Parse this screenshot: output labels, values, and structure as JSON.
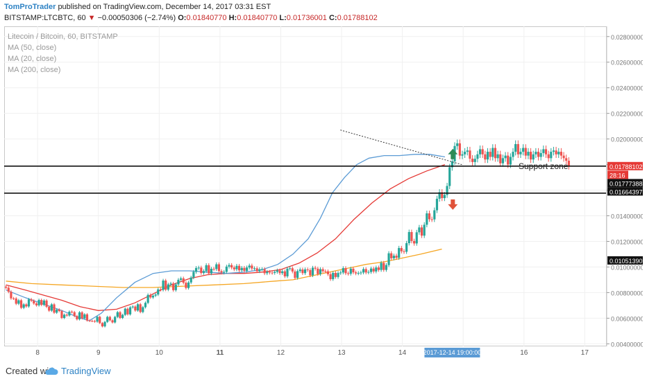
{
  "header": {
    "author": "TomProTrader",
    "published_text": "published on TradingView.com, December 14, 2017 03:31 EST",
    "symbol": "BITSTAMP:LTCBTC, 60",
    "change_arrow": "▼",
    "change": "−0.00050306 (−2.74%)",
    "o_label": "O:",
    "o_value": "0.01840770",
    "h_label": "H:",
    "h_value": "0.01840770",
    "l_label": "L:",
    "l_value": "0.01736001",
    "c_label": "C:",
    "c_value": "0.01788102"
  },
  "legend": {
    "title": "Litecoin / Bitcoin, 60, BITSTAMP",
    "ma50": "MA (50, close)",
    "ma20": "MA (20, close)",
    "ma200": "MA (200, close)"
  },
  "annotation": {
    "support_zone": "Support zone"
  },
  "footer": {
    "created_with": "Created with",
    "brand": "TradingView"
  },
  "colors": {
    "up": "#26a69a",
    "down": "#ef5350",
    "ma20": "#5b9bd5",
    "ma50": "#e53935",
    "ma200": "#f5a623",
    "arrow_up": "#2e8b57",
    "arrow_down": "#e0533a",
    "price_tag": "#e53935",
    "time_tag": "#5b9bd5"
  },
  "chart_data": {
    "type": "candlestick",
    "ylim": [
      0.0038,
      0.0288
    ],
    "y_ticks": [
      "0.02800000",
      "0.02600000",
      "0.02400000",
      "0.02200000",
      "0.02000000",
      "0.01800000",
      "0.01600000",
      "0.01400000",
      "0.01200000",
      "0.01000000",
      "0.00800000",
      "0.00600000",
      "0.00400000"
    ],
    "y_tick_values": [
      0.028,
      0.026,
      0.024,
      0.022,
      0.02,
      0.018,
      0.016,
      0.014,
      0.012,
      0.01,
      0.008,
      0.006,
      0.004
    ],
    "x_range": [
      7.45,
      17.35
    ],
    "x_ticks": [
      "8",
      "9",
      "10",
      "11",
      "12",
      "13",
      "14",
      "15",
      "16",
      "17"
    ],
    "x_tick_values": [
      8,
      9,
      10,
      11,
      12,
      13,
      14,
      15,
      16,
      17
    ],
    "bold_x_tick": "11",
    "time_label": "2017-12-14 19:00:00",
    "time_label_x": 14.82,
    "price_labels": [
      {
        "text": "0.01788102",
        "value": 0.01788102,
        "style": "current"
      },
      {
        "text": "28:16",
        "value": 0.0172,
        "style": "countdown"
      },
      {
        "text": "0.01777388",
        "value": 0.01777388,
        "style": "level"
      },
      {
        "text": "0.01664397",
        "value": 0.01664397,
        "style": "level"
      },
      {
        "text": "0.01051390",
        "value": 0.0105139,
        "style": "level"
      }
    ],
    "support_lines": [
      0.01788102,
      0.01577
    ],
    "trendline": {
      "from": [
        12.98,
        0.0207
      ],
      "to": [
        15.0,
        0.01797
      ]
    },
    "arrows": [
      {
        "dir": "up",
        "x": 14.83,
        "y": 0.0188
      },
      {
        "dir": "down",
        "x": 14.83,
        "y": 0.0149
      }
    ],
    "candles_x_start": 7.48,
    "candles_x_step": 0.0417,
    "candle_closes": [
      0.00838,
      0.00807,
      0.00755,
      0.00754,
      0.00713,
      0.0074,
      0.00681,
      0.00708,
      0.00692,
      0.00747,
      0.00737,
      0.00715,
      0.00701,
      0.00742,
      0.00704,
      0.00738,
      0.00689,
      0.00659,
      0.00708,
      0.00643,
      0.00667,
      0.00656,
      0.00602,
      0.00627,
      0.00621,
      0.00651,
      0.00647,
      0.00617,
      0.00591,
      0.00646,
      0.00599,
      0.0063,
      0.00582,
      0.00579,
      0.00578,
      0.00573,
      0.00611,
      0.00562,
      0.00536,
      0.00571,
      0.0061,
      0.00584,
      0.00567,
      0.0061,
      0.00647,
      0.00602,
      0.00626,
      0.00674,
      0.0063,
      0.00685,
      0.00691,
      0.0066,
      0.00709,
      0.00648,
      0.00686,
      0.0072,
      0.00782,
      0.00762,
      0.00776,
      0.00785,
      0.00825,
      0.00821,
      0.00894,
      0.00823,
      0.00864,
      0.00871,
      0.00819,
      0.00864,
      0.009,
      0.00911,
      0.00877,
      0.00836,
      0.00879,
      0.00918,
      0.00962,
      0.00992,
      0.00995,
      0.00953,
      0.00968,
      0.01014,
      0.0095,
      0.00986,
      0.00984,
      0.01021,
      0.00968,
      0.00956,
      0.00962,
      0.01003,
      0.01015,
      0.00996,
      0.00982,
      0.01009,
      0.00974,
      0.00993,
      0.0097,
      0.00996,
      0.01011,
      0.00988,
      0.0099,
      0.00967,
      0.00982,
      0.00983,
      0.00951,
      0.00962,
      0.00956,
      0.00954,
      0.00962,
      0.00973,
      0.00952,
      0.00966,
      0.00927,
      0.00987,
      0.0099,
      0.00965,
      0.00915,
      0.00968,
      0.0098,
      0.00952,
      0.00981,
      0.00976,
      0.00935,
      0.00994,
      0.00987,
      0.00945,
      0.00983,
      0.00967,
      0.00966,
      0.00944,
      0.00905,
      0.00954,
      0.00922,
      0.00953,
      0.00957,
      0.00991,
      0.00951,
      0.00947,
      0.00987,
      0.00958,
      0.0095,
      0.00953,
      0.00957,
      0.00984,
      0.00957,
      0.00961,
      0.00988,
      0.00965,
      0.00996,
      0.00977,
      0.01032,
      0.00977,
      0.01015,
      0.01107,
      0.01068,
      0.01088,
      0.01072,
      0.01148,
      0.01123,
      0.01119,
      0.01186,
      0.01273,
      0.01203,
      0.01184,
      0.01271,
      0.01309,
      0.01245,
      0.0133,
      0.01419,
      0.01373,
      0.01372,
      0.01443,
      0.01533,
      0.01584,
      0.01538,
      0.01563,
      0.01633,
      0.01779,
      0.01825,
      0.01945,
      0.01966,
      0.0187,
      0.0188,
      0.019,
      0.0191,
      0.01846,
      0.0182,
      0.01845,
      0.0188,
      0.0192,
      0.0188,
      0.0184,
      0.019,
      0.0186,
      0.0193,
      0.0185,
      0.0188,
      0.0181,
      0.0185,
      0.0187,
      0.018,
      0.0186,
      0.019,
      0.0196,
      0.0188,
      0.019,
      0.0193,
      0.0187,
      0.019,
      0.0184,
      0.0188,
      0.019,
      0.0186,
      0.0189,
      0.0192,
      0.0188,
      0.0185,
      0.019,
      0.0191,
      0.0188,
      0.019,
      0.0187,
      0.0185,
      0.0183,
      0.01788
    ],
    "ma20": [
      [
        7.48,
        0.0082
      ],
      [
        7.8,
        0.0076
      ],
      [
        8.1,
        0.0071
      ],
      [
        8.4,
        0.0066
      ],
      [
        8.65,
        0.0061
      ],
      [
        8.85,
        0.0058
      ],
      [
        9.05,
        0.0064
      ],
      [
        9.3,
        0.0076
      ],
      [
        9.6,
        0.0088
      ],
      [
        9.9,
        0.0095
      ],
      [
        10.2,
        0.0097
      ],
      [
        10.5,
        0.0097
      ],
      [
        10.8,
        0.0096
      ],
      [
        11.1,
        0.0095
      ],
      [
        11.4,
        0.0096
      ],
      [
        11.7,
        0.0098
      ],
      [
        11.95,
        0.0102
      ],
      [
        12.2,
        0.011
      ],
      [
        12.45,
        0.0122
      ],
      [
        12.65,
        0.0138
      ],
      [
        12.85,
        0.0158
      ],
      [
        13.05,
        0.017
      ],
      [
        13.25,
        0.018
      ],
      [
        13.45,
        0.0185
      ],
      [
        13.7,
        0.0187
      ],
      [
        13.95,
        0.0187
      ],
      [
        14.2,
        0.0188
      ],
      [
        14.45,
        0.0188
      ],
      [
        14.7,
        0.0186
      ]
    ],
    "ma50": [
      [
        7.48,
        0.0086
      ],
      [
        7.8,
        0.0082
      ],
      [
        8.1,
        0.0078
      ],
      [
        8.4,
        0.0074
      ],
      [
        8.7,
        0.0069
      ],
      [
        9.0,
        0.0066
      ],
      [
        9.3,
        0.0067
      ],
      [
        9.6,
        0.0072
      ],
      [
        9.9,
        0.0079
      ],
      [
        10.2,
        0.0086
      ],
      [
        10.5,
        0.0091
      ],
      [
        10.8,
        0.0094
      ],
      [
        11.1,
        0.0095
      ],
      [
        11.4,
        0.0095
      ],
      [
        11.7,
        0.0096
      ],
      [
        12.0,
        0.0098
      ],
      [
        12.3,
        0.0103
      ],
      [
        12.6,
        0.0111
      ],
      [
        12.9,
        0.0122
      ],
      [
        13.2,
        0.0137
      ],
      [
        13.5,
        0.015
      ],
      [
        13.8,
        0.0161
      ],
      [
        14.1,
        0.0169
      ],
      [
        14.4,
        0.0175
      ],
      [
        14.7,
        0.018
      ]
    ],
    "ma200": [
      [
        7.48,
        0.0089
      ],
      [
        7.9,
        0.0087
      ],
      [
        8.4,
        0.0086
      ],
      [
        8.9,
        0.0085
      ],
      [
        9.4,
        0.0084
      ],
      [
        9.9,
        0.0084
      ],
      [
        10.4,
        0.0085
      ],
      [
        10.9,
        0.0086
      ],
      [
        11.4,
        0.0087
      ],
      [
        11.9,
        0.0089
      ],
      [
        12.2,
        0.009
      ],
      [
        12.5,
        0.0093
      ],
      [
        12.8,
        0.0096
      ],
      [
        13.1,
        0.0099
      ],
      [
        13.4,
        0.0102
      ],
      [
        13.7,
        0.0104
      ],
      [
        14.0,
        0.0107
      ],
      [
        14.3,
        0.011
      ],
      [
        14.65,
        0.0114
      ]
    ]
  }
}
